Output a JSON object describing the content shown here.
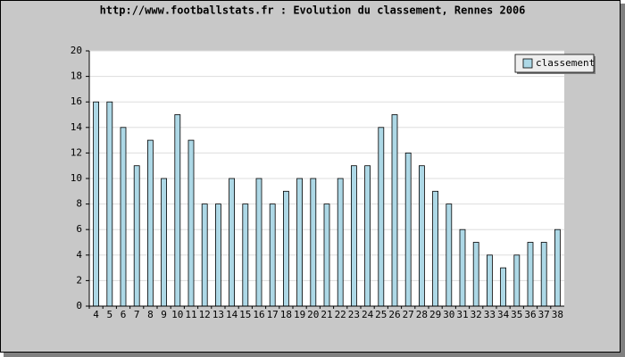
{
  "chart_data": {
    "type": "bar",
    "title": "http://www.footballstats.fr : Evolution du classement, Rennes 2006",
    "categories": [
      "4",
      "5",
      "6",
      "7",
      "8",
      "9",
      "10",
      "11",
      "12",
      "13",
      "14",
      "15",
      "16",
      "17",
      "18",
      "19",
      "20",
      "21",
      "22",
      "23",
      "24",
      "25",
      "26",
      "27",
      "28",
      "29",
      "30",
      "31",
      "32",
      "33",
      "34",
      "35",
      "36",
      "37",
      "38"
    ],
    "series": [
      {
        "name": "classement",
        "color": "#add8e6",
        "values": [
          16,
          16,
          14,
          11,
          13,
          10,
          15,
          13,
          8,
          8,
          10,
          8,
          10,
          8,
          9,
          10,
          10,
          8,
          10,
          11,
          11,
          14,
          15,
          12,
          11,
          9,
          8,
          6,
          5,
          4,
          3,
          4,
          5,
          5,
          6
        ]
      }
    ],
    "ylim": [
      0,
      20
    ],
    "yticks": [
      0,
      2,
      4,
      6,
      8,
      10,
      12,
      14,
      16,
      18,
      20
    ],
    "grid": true,
    "legend": "top-right"
  }
}
